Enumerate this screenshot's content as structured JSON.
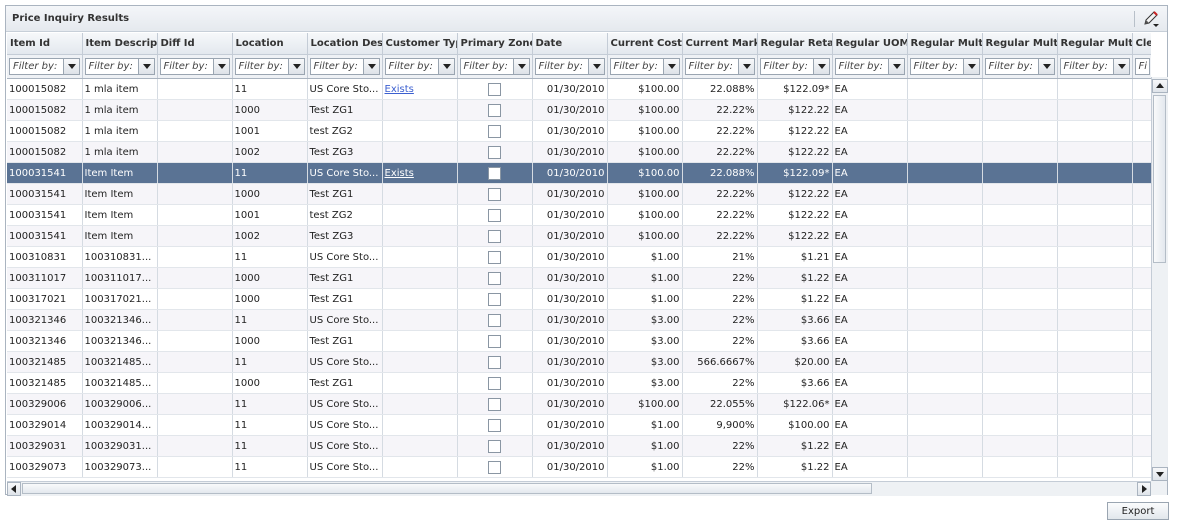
{
  "panel": {
    "title": "Price Inquiry Results",
    "edit_icon": "pencil-edit-icon"
  },
  "columns": [
    "Item Id",
    "Item Descripti",
    "Diff Id",
    "Location",
    "Location Desc",
    "Customer Typ",
    "Primary Zone",
    "Date",
    "Current Cost",
    "Current Marku",
    "Regular Retail",
    "Regular UOM",
    "Regular Multi",
    "Regular Multi",
    "Regular Multi",
    "Cle"
  ],
  "filter_placeholder": "Filter by:",
  "filter_placeholder_short": "Fi",
  "rows": [
    {
      "item_id": "100015082",
      "desc": "1 mla item",
      "diff_id": "",
      "location": "11",
      "loc_desc": "US Core Sto...",
      "customer_type": "Exists",
      "date": "01/30/2010",
      "cost": "$100.00",
      "markup": "22.088%",
      "retail": "$122.09*",
      "uom": "EA"
    },
    {
      "item_id": "100015082",
      "desc": "1 mla item",
      "diff_id": "",
      "location": "1000",
      "loc_desc": "Test ZG1",
      "customer_type": "",
      "date": "01/30/2010",
      "cost": "$100.00",
      "markup": "22.22%",
      "retail": "$122.22",
      "uom": "EA"
    },
    {
      "item_id": "100015082",
      "desc": "1 mla item",
      "diff_id": "",
      "location": "1001",
      "loc_desc": "test ZG2",
      "customer_type": "",
      "date": "01/30/2010",
      "cost": "$100.00",
      "markup": "22.22%",
      "retail": "$122.22",
      "uom": "EA"
    },
    {
      "item_id": "100015082",
      "desc": "1 mla item",
      "diff_id": "",
      "location": "1002",
      "loc_desc": "Test ZG3",
      "customer_type": "",
      "date": "01/30/2010",
      "cost": "$100.00",
      "markup": "22.22%",
      "retail": "$122.22",
      "uom": "EA"
    },
    {
      "item_id": "100031541",
      "desc": "Item Item",
      "diff_id": "",
      "location": "11",
      "loc_desc": "US Core Sto...",
      "customer_type": "Exists",
      "date": "01/30/2010",
      "cost": "$100.00",
      "markup": "22.088%",
      "retail": "$122.09*",
      "uom": "EA",
      "selected": true
    },
    {
      "item_id": "100031541",
      "desc": "Item Item",
      "diff_id": "",
      "location": "1000",
      "loc_desc": "Test ZG1",
      "customer_type": "",
      "date": "01/30/2010",
      "cost": "$100.00",
      "markup": "22.22%",
      "retail": "$122.22",
      "uom": "EA"
    },
    {
      "item_id": "100031541",
      "desc": "Item Item",
      "diff_id": "",
      "location": "1001",
      "loc_desc": "test ZG2",
      "customer_type": "",
      "date": "01/30/2010",
      "cost": "$100.00",
      "markup": "22.22%",
      "retail": "$122.22",
      "uom": "EA"
    },
    {
      "item_id": "100031541",
      "desc": "Item Item",
      "diff_id": "",
      "location": "1002",
      "loc_desc": "Test ZG3",
      "customer_type": "",
      "date": "01/30/2010",
      "cost": "$100.00",
      "markup": "22.22%",
      "retail": "$122.22",
      "uom": "EA"
    },
    {
      "item_id": "100310831",
      "desc": "100310831...",
      "diff_id": "",
      "location": "11",
      "loc_desc": "US Core Sto...",
      "customer_type": "",
      "date": "01/30/2010",
      "cost": "$1.00",
      "markup": "21%",
      "retail": "$1.21",
      "uom": "EA"
    },
    {
      "item_id": "100311017",
      "desc": "100311017...",
      "diff_id": "",
      "location": "1000",
      "loc_desc": "Test ZG1",
      "customer_type": "",
      "date": "01/30/2010",
      "cost": "$1.00",
      "markup": "22%",
      "retail": "$1.22",
      "uom": "EA"
    },
    {
      "item_id": "100317021",
      "desc": "100317021...",
      "diff_id": "",
      "location": "1000",
      "loc_desc": "Test ZG1",
      "customer_type": "",
      "date": "01/30/2010",
      "cost": "$1.00",
      "markup": "22%",
      "retail": "$1.22",
      "uom": "EA"
    },
    {
      "item_id": "100321346",
      "desc": "100321346...",
      "diff_id": "",
      "location": "11",
      "loc_desc": "US Core Sto...",
      "customer_type": "",
      "date": "01/30/2010",
      "cost": "$3.00",
      "markup": "22%",
      "retail": "$3.66",
      "uom": "EA"
    },
    {
      "item_id": "100321346",
      "desc": "100321346...",
      "diff_id": "",
      "location": "1000",
      "loc_desc": "Test ZG1",
      "customer_type": "",
      "date": "01/30/2010",
      "cost": "$3.00",
      "markup": "22%",
      "retail": "$3.66",
      "uom": "EA"
    },
    {
      "item_id": "100321485",
      "desc": "100321485...",
      "diff_id": "",
      "location": "11",
      "loc_desc": "US Core Sto...",
      "customer_type": "",
      "date": "01/30/2010",
      "cost": "$3.00",
      "markup": "566.6667%",
      "retail": "$20.00",
      "uom": "EA"
    },
    {
      "item_id": "100321485",
      "desc": "100321485...",
      "diff_id": "",
      "location": "1000",
      "loc_desc": "Test ZG1",
      "customer_type": "",
      "date": "01/30/2010",
      "cost": "$3.00",
      "markup": "22%",
      "retail": "$3.66",
      "uom": "EA"
    },
    {
      "item_id": "100329006",
      "desc": "100329006...",
      "diff_id": "",
      "location": "11",
      "loc_desc": "US Core Sto...",
      "customer_type": "",
      "date": "01/30/2010",
      "cost": "$100.00",
      "markup": "22.055%",
      "retail": "$122.06*",
      "uom": "EA"
    },
    {
      "item_id": "100329014",
      "desc": "100329014...",
      "diff_id": "",
      "location": "11",
      "loc_desc": "US Core Sto...",
      "customer_type": "",
      "date": "01/30/2010",
      "cost": "$1.00",
      "markup": "9,900%",
      "retail": "$100.00",
      "uom": "EA"
    },
    {
      "item_id": "100329031",
      "desc": "100329031...",
      "diff_id": "",
      "location": "11",
      "loc_desc": "US Core Sto...",
      "customer_type": "",
      "date": "01/30/2010",
      "cost": "$1.00",
      "markup": "22%",
      "retail": "$1.22",
      "uom": "EA"
    },
    {
      "item_id": "100329073",
      "desc": "100329073...",
      "diff_id": "",
      "location": "11",
      "loc_desc": "US Core Sto...",
      "customer_type": "",
      "date": "01/30/2010",
      "cost": "$1.00",
      "markup": "22%",
      "retail": "$1.22",
      "uom": "EA"
    }
  ],
  "export_label": "Export",
  "colors": {
    "selected_row": "#5a7394",
    "link": "#3b5fd0"
  }
}
